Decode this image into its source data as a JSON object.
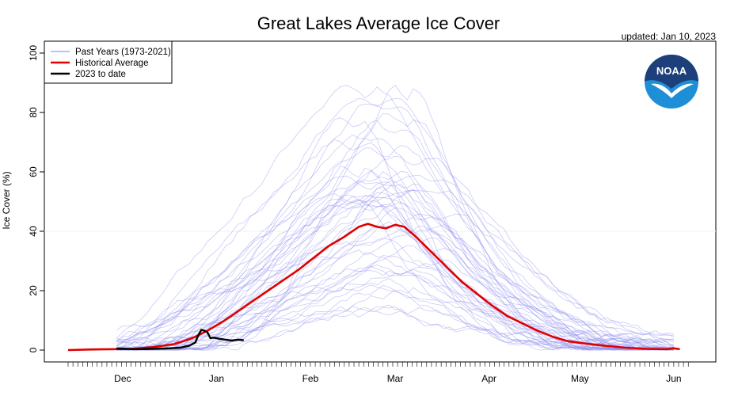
{
  "chart_data": {
    "type": "line",
    "title": "Great Lakes Average Ice Cover",
    "updated": "updated: Jan 10, 2023",
    "ylabel": "Ice Cover (%)",
    "xlabel": "",
    "ylim": [
      0,
      100
    ],
    "xlim": [
      "Nov 13",
      "Jun 6"
    ],
    "y_ticks": [
      "0",
      "20",
      "40",
      "60",
      "80",
      "100"
    ],
    "x_ticks": [
      {
        "label": "Dec",
        "date": "Dec 1"
      },
      {
        "label": "Jan",
        "date": "Jan 1"
      },
      {
        "label": "Feb",
        "date": "Feb 1"
      },
      {
        "label": "Mar",
        "date": "Mar 1"
      },
      {
        "label": "Apr",
        "date": "Apr 1"
      },
      {
        "label": "May",
        "date": "May 1"
      },
      {
        "label": "Jun",
        "date": "Jun 1"
      }
    ],
    "legend_position": "top-left",
    "grid": false,
    "logo_text": "NOAA",
    "colors": {
      "past_years": "#8c8cf0",
      "historical_average": "#e00000",
      "current": "#000000",
      "logo_blue": "#1e8fd6",
      "logo_navy": "#1d3f7a"
    },
    "series": [
      {
        "name": "Past Years (1973-2021)",
        "role": "past_years",
        "style": "bundle",
        "note": "individual years approximated"
      },
      {
        "name": "Historical Average",
        "role": "average",
        "points": [
          [
            "Nov 13",
            0
          ],
          [
            "Nov 20",
            0.2
          ],
          [
            "Nov 27",
            0.3
          ],
          [
            "Dec 4",
            0.4
          ],
          [
            "Dec 11",
            1
          ],
          [
            "Dec 18",
            2
          ],
          [
            "Dec 24",
            4
          ],
          [
            "Dec 29",
            6.5
          ],
          [
            "Jan 3",
            9.5
          ],
          [
            "Jan 8",
            13
          ],
          [
            "Jan 13",
            16.5
          ],
          [
            "Jan 18",
            20
          ],
          [
            "Jan 23",
            23.5
          ],
          [
            "Jan 28",
            27
          ],
          [
            "Feb 2",
            31
          ],
          [
            "Feb 7",
            35
          ],
          [
            "Feb 12",
            38
          ],
          [
            "Feb 17",
            41.5
          ],
          [
            "Feb 20",
            42.5
          ],
          [
            "Feb 23",
            41.5
          ],
          [
            "Feb 26",
            41
          ],
          [
            "Mar 1",
            42.2
          ],
          [
            "Mar 4",
            41.5
          ],
          [
            "Mar 8",
            38
          ],
          [
            "Mar 13",
            33
          ],
          [
            "Mar 18",
            28
          ],
          [
            "Mar 23",
            23
          ],
          [
            "Mar 28",
            19
          ],
          [
            "Apr 2",
            15
          ],
          [
            "Apr 7",
            11.5
          ],
          [
            "Apr 12",
            9
          ],
          [
            "Apr 17",
            6.5
          ],
          [
            "Apr 22",
            4.5
          ],
          [
            "Apr 27",
            3
          ],
          [
            "May 2",
            2.3
          ],
          [
            "May 9",
            1.5
          ],
          [
            "May 16",
            0.8
          ],
          [
            "May 23",
            0.4
          ],
          [
            "May 30",
            0.3
          ],
          [
            "Jun 1",
            0.6
          ],
          [
            "Jun 3",
            0.3
          ]
        ]
      },
      {
        "name": "2023 to date",
        "role": "current",
        "points": [
          [
            "Nov 29",
            0.5
          ],
          [
            "Dec 5",
            0.3
          ],
          [
            "Dec 10",
            0.4
          ],
          [
            "Dec 15",
            0.5
          ],
          [
            "Dec 20",
            0.8
          ],
          [
            "Dec 23",
            1.5
          ],
          [
            "Dec 25",
            2.5
          ],
          [
            "Dec 26",
            5
          ],
          [
            "Dec 27",
            6.8
          ],
          [
            "Dec 28",
            6.5
          ],
          [
            "Dec 29",
            6.0
          ],
          [
            "Dec 30",
            4
          ],
          [
            "Dec 31",
            4.2
          ],
          [
            "Jan 2",
            3.8
          ],
          [
            "Jan 4",
            3.5
          ],
          [
            "Jan 6",
            3.2
          ],
          [
            "Jan 8",
            3.5
          ],
          [
            "Jan 10",
            3.3
          ]
        ]
      }
    ]
  }
}
